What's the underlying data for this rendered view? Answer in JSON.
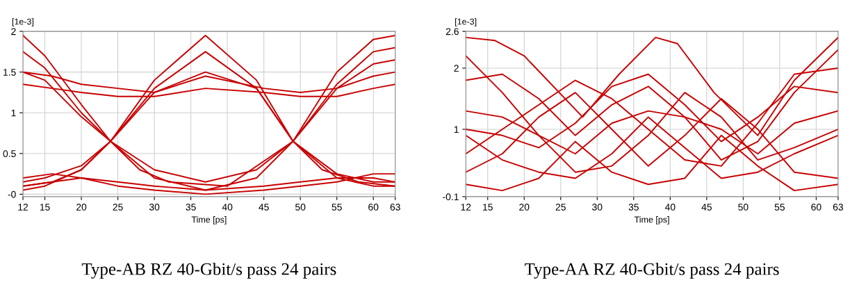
{
  "chart_data": [
    {
      "type": "line",
      "ylabel": "[1e-3]",
      "xlabel": "Time [ps]",
      "annotations": [
        "Type-AB RZ 40-Gbit/s pass 24 pairs"
      ],
      "xlim": [
        12,
        63
      ],
      "ylim": [
        -0.03,
        2.0
      ],
      "xticks": [
        12,
        15,
        20,
        25,
        30,
        35,
        40,
        45,
        50,
        55,
        60,
        63
      ],
      "yticks": [
        {
          "value": 0,
          "label": "-0"
        },
        0.5,
        1,
        1.5,
        2
      ],
      "grid": true,
      "marker": "none",
      "line_style": "solid",
      "legend": false,
      "series": [
        {
          "color": "#c80000",
          "x": [
            12,
            16,
            20,
            25,
            30,
            37,
            45,
            50,
            55,
            60,
            63
          ],
          "values": [
            1.5,
            1.45,
            1.35,
            1.3,
            1.25,
            1.45,
            1.3,
            1.25,
            1.3,
            1.45,
            1.5
          ]
        },
        {
          "color": "#c80000",
          "x": [
            12,
            16,
            20,
            25,
            30,
            37,
            45,
            50,
            55,
            60,
            63
          ],
          "values": [
            1.35,
            1.3,
            1.25,
            1.2,
            1.2,
            1.3,
            1.25,
            1.2,
            1.2,
            1.3,
            1.35
          ]
        },
        {
          "color": "#c80000",
          "x": [
            12,
            16,
            20,
            25,
            30,
            37,
            45,
            50,
            55,
            60,
            63
          ],
          "values": [
            0.1,
            0.15,
            0.2,
            0.15,
            0.1,
            0.05,
            0.1,
            0.15,
            0.2,
            0.2,
            0.15
          ]
        },
        {
          "color": "#c80000",
          "x": [
            12,
            16,
            20,
            25,
            30,
            37,
            45,
            50,
            55,
            60,
            63
          ],
          "values": [
            0.2,
            0.25,
            0.2,
            0.1,
            0.05,
            0.0,
            0.05,
            0.1,
            0.15,
            0.25,
            0.25
          ]
        },
        {
          "color": "#c80000",
          "x": [
            12,
            15,
            20,
            24,
            30,
            37,
            44,
            49,
            55,
            60,
            63
          ],
          "values": [
            0.05,
            0.1,
            0.3,
            0.65,
            1.4,
            1.95,
            1.4,
            0.65,
            0.2,
            0.1,
            0.1
          ]
        },
        {
          "color": "#c80000",
          "x": [
            12,
            15,
            20,
            24,
            30,
            37,
            44,
            49,
            55,
            60,
            63
          ],
          "values": [
            0.15,
            0.2,
            0.35,
            0.65,
            1.3,
            1.75,
            1.3,
            0.65,
            0.25,
            0.15,
            0.15
          ]
        },
        {
          "color": "#c80000",
          "x": [
            12,
            15,
            20,
            24,
            30,
            37,
            44,
            49,
            55,
            60,
            63
          ],
          "values": [
            1.95,
            1.7,
            1.1,
            0.65,
            0.2,
            0.05,
            0.2,
            0.65,
            1.5,
            1.9,
            1.95
          ]
        },
        {
          "color": "#c80000",
          "x": [
            12,
            15,
            20,
            24,
            30,
            37,
            44,
            49,
            55,
            60,
            63
          ],
          "values": [
            1.75,
            1.55,
            1.0,
            0.65,
            0.3,
            0.15,
            0.3,
            0.65,
            1.35,
            1.75,
            1.8
          ]
        },
        {
          "color": "#c80000",
          "x": [
            12,
            15,
            20,
            24,
            28,
            32,
            40,
            49,
            55,
            60,
            63
          ],
          "values": [
            1.5,
            1.4,
            0.95,
            0.65,
            0.3,
            0.15,
            0.1,
            0.65,
            1.3,
            1.6,
            1.65
          ]
        },
        {
          "color": "#c80000",
          "x": [
            12,
            16,
            20,
            24,
            30,
            37,
            44,
            49,
            53,
            58,
            63
          ],
          "values": [
            0.1,
            0.15,
            0.3,
            0.65,
            1.25,
            1.5,
            1.3,
            0.65,
            0.3,
            0.15,
            0.1
          ]
        }
      ]
    },
    {
      "type": "line",
      "ylabel": "[1e-3]",
      "xlabel": "Time [ps]",
      "annotations": [
        "Type-AA RZ 40-Gbit/s pass 24 pairs"
      ],
      "xlim": [
        12,
        63
      ],
      "ylim": [
        -0.1,
        2.6
      ],
      "xticks": [
        12,
        15,
        20,
        25,
        30,
        35,
        40,
        45,
        50,
        55,
        60,
        63
      ],
      "yticks": [
        -0.1,
        1,
        2,
        2.6
      ],
      "grid": true,
      "marker": "none",
      "line_style": "solid",
      "legend": false,
      "series": [
        {
          "color": "#c80000",
          "x": [
            12,
            16,
            20,
            28,
            33,
            38,
            41,
            46,
            52,
            57,
            63
          ],
          "values": [
            2.5,
            2.45,
            2.2,
            1.2,
            1.9,
            2.5,
            2.4,
            1.6,
            0.9,
            1.8,
            2.5
          ]
        },
        {
          "color": "#c80000",
          "x": [
            12,
            17,
            22,
            27,
            32,
            37,
            42,
            47,
            52,
            57,
            63
          ],
          "values": [
            1.8,
            1.9,
            1.5,
            0.9,
            1.4,
            1.7,
            1.2,
            0.5,
            0.8,
            1.6,
            2.3
          ]
        },
        {
          "color": "#c80000",
          "x": [
            12,
            17,
            22,
            27,
            32,
            37,
            42,
            47,
            52,
            57,
            63
          ],
          "values": [
            0.3,
            0.6,
            1.2,
            1.6,
            1.0,
            0.4,
            0.9,
            1.5,
            1.0,
            0.3,
            0.2
          ]
        },
        {
          "color": "#c80000",
          "x": [
            12,
            17,
            22,
            27,
            32,
            37,
            42,
            47,
            52,
            57,
            63
          ],
          "values": [
            1.0,
            0.9,
            0.7,
            1.1,
            1.7,
            1.9,
            1.4,
            0.8,
            1.2,
            1.7,
            1.6
          ]
        },
        {
          "color": "#c80000",
          "x": [
            12,
            17,
            22,
            27,
            32,
            37,
            42,
            47,
            52,
            57,
            63
          ],
          "values": [
            0.1,
            0.0,
            0.2,
            0.8,
            0.3,
            0.1,
            0.2,
            0.9,
            0.4,
            0.0,
            0.1
          ]
        },
        {
          "color": "#c80000",
          "x": [
            12,
            17,
            22,
            27,
            32,
            37,
            42,
            47,
            52,
            57,
            63
          ],
          "values": [
            1.3,
            1.2,
            0.9,
            0.6,
            1.1,
            1.3,
            1.2,
            1.0,
            0.6,
            1.1,
            1.3
          ]
        },
        {
          "color": "#c80000",
          "x": [
            12,
            17,
            22,
            27,
            32,
            37,
            42,
            47,
            52,
            57,
            63
          ],
          "values": [
            2.2,
            1.6,
            0.9,
            0.3,
            0.4,
            0.9,
            1.6,
            1.2,
            0.5,
            0.7,
            1.0
          ]
        },
        {
          "color": "#c80000",
          "x": [
            12,
            17,
            22,
            27,
            32,
            37,
            42,
            47,
            52,
            57,
            63
          ],
          "values": [
            0.6,
            1.0,
            1.4,
            1.8,
            1.5,
            1.0,
            0.5,
            0.4,
            1.1,
            1.9,
            2.0
          ]
        },
        {
          "color": "#c80000",
          "x": [
            12,
            17,
            22,
            27,
            32,
            37,
            42,
            47,
            52,
            57,
            63
          ],
          "values": [
            0.9,
            0.5,
            0.3,
            0.2,
            0.6,
            1.2,
            0.7,
            0.2,
            0.3,
            0.6,
            0.9
          ]
        }
      ]
    }
  ]
}
